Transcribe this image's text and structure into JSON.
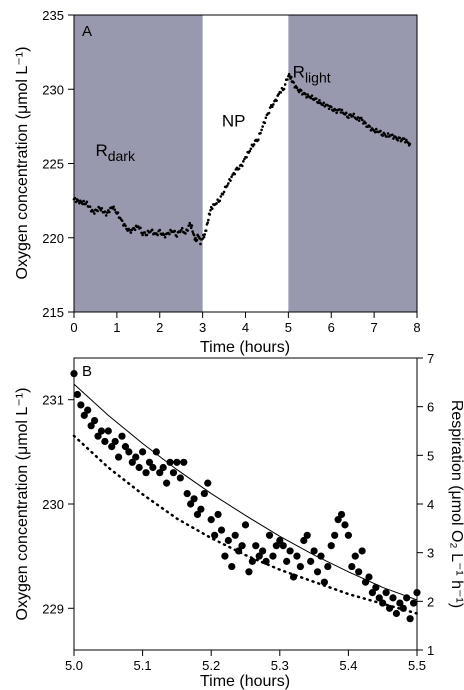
{
  "chart_data": [
    {
      "type": "scatter",
      "panel_label": "A",
      "xlabel": "Time (hours)",
      "ylabel": "Oxygen concentration (μmol L⁻¹)",
      "xlim": [
        0,
        8
      ],
      "ylim": [
        215,
        235
      ],
      "xticks": [
        "0",
        "1",
        "2",
        "3",
        "4",
        "5",
        "6",
        "7",
        "8"
      ],
      "yticks": [
        "215",
        "220",
        "225",
        "230",
        "235"
      ],
      "shaded_regions": [
        {
          "from": 0,
          "to": 3,
          "color": "#9898ae"
        },
        {
          "from": 5,
          "to": 8,
          "color": "#9898ae"
        }
      ],
      "annotations": [
        {
          "base": "R",
          "sub": "dark",
          "x": 0.5,
          "y": 225.5
        },
        {
          "base": "NP",
          "sub": "",
          "x": 3.45,
          "y": 227.5
        },
        {
          "base": "R",
          "sub": "light",
          "x": 5.1,
          "y": 230.8
        }
      ],
      "series": [
        {
          "marker_color": "#000000",
          "x": [
            0.0,
            0.15,
            0.3,
            0.45,
            0.6,
            0.75,
            0.9,
            1.0,
            1.1,
            1.2,
            1.3,
            1.4,
            1.5,
            1.6,
            1.7,
            1.8,
            1.9,
            2.0,
            2.1,
            2.2,
            2.3,
            2.4,
            2.5,
            2.6,
            2.7,
            2.75,
            2.8,
            2.85,
            2.9,
            2.95,
            3.0,
            3.05,
            3.1,
            3.15,
            3.2,
            3.3,
            3.4,
            3.5,
            3.6,
            3.7,
            3.8,
            3.9,
            4.0,
            4.1,
            4.2,
            4.3,
            4.4,
            4.5,
            4.6,
            4.7,
            4.8,
            4.9,
            5.0,
            5.05,
            5.1,
            5.2,
            5.3,
            5.4,
            5.5,
            5.6,
            5.7,
            5.8,
            5.9,
            6.0,
            6.1,
            6.2,
            6.3,
            6.4,
            6.5,
            6.6,
            6.7,
            6.8,
            6.9,
            7.0,
            7.1,
            7.2,
            7.3,
            7.4,
            7.5,
            7.6,
            7.7,
            7.8,
            7.85
          ],
          "y": [
            222.6,
            222.4,
            222.3,
            221.7,
            222.0,
            221.6,
            222.1,
            221.7,
            221.2,
            220.7,
            220.4,
            220.6,
            220.8,
            220.3,
            220.3,
            220.5,
            220.2,
            220.4,
            220.1,
            220.3,
            220.5,
            220.2,
            220.6,
            220.3,
            220.9,
            220.7,
            220.1,
            219.8,
            220.2,
            219.7,
            220.0,
            220.2,
            220.8,
            221.5,
            222.0,
            222.3,
            222.6,
            223.2,
            223.7,
            224.2,
            224.6,
            224.8,
            225.4,
            225.9,
            226.4,
            226.7,
            227.5,
            228.2,
            228.8,
            229.2,
            229.8,
            230.1,
            231.0,
            230.8,
            230.5,
            230.0,
            229.8,
            229.6,
            229.5,
            229.4,
            229.2,
            229.0,
            228.9,
            228.7,
            228.5,
            228.6,
            228.4,
            228.2,
            228.3,
            228.0,
            228.0,
            227.6,
            227.4,
            227.2,
            227.2,
            227.0,
            226.9,
            226.9,
            226.7,
            226.6,
            226.6,
            226.4,
            226.1
          ]
        }
      ]
    },
    {
      "type": "scatter",
      "panel_label": "B",
      "xlabel": "Time (hours)",
      "ylabel": "Oxygen concentration (μmol L⁻¹)",
      "ylabel_right": "Respiration (μmol O₂ L⁻¹ h⁻¹)",
      "xlim": [
        5.0,
        5.5
      ],
      "ylim": [
        228.6,
        231.4
      ],
      "ylim_right": [
        1.0,
        7.0
      ],
      "xticks": [
        "5.0",
        "5.1",
        "5.2",
        "5.3",
        "5.4",
        "5.5"
      ],
      "yticks": [
        "229",
        "230",
        "231"
      ],
      "yticks_right": [
        "1",
        "2",
        "3",
        "4",
        "5",
        "6",
        "7"
      ],
      "series": [
        {
          "style": "points",
          "x": [
            5.0,
            5.005,
            5.01,
            5.015,
            5.02,
            5.025,
            5.03,
            5.035,
            5.04,
            5.045,
            5.05,
            5.055,
            5.06,
            5.065,
            5.07,
            5.075,
            5.08,
            5.085,
            5.09,
            5.095,
            5.1,
            5.105,
            5.11,
            5.115,
            5.12,
            5.125,
            5.13,
            5.135,
            5.14,
            5.145,
            5.15,
            5.155,
            5.16,
            5.165,
            5.17,
            5.175,
            5.18,
            5.185,
            5.19,
            5.195,
            5.2,
            5.205,
            5.21,
            5.215,
            5.22,
            5.225,
            5.23,
            5.235,
            5.24,
            5.245,
            5.25,
            5.255,
            5.26,
            5.265,
            5.27,
            5.275,
            5.28,
            5.285,
            5.29,
            5.295,
            5.3,
            5.305,
            5.31,
            5.315,
            5.32,
            5.325,
            5.33,
            5.335,
            5.34,
            5.345,
            5.35,
            5.355,
            5.36,
            5.365,
            5.37,
            5.375,
            5.38,
            5.385,
            5.39,
            5.395,
            5.4,
            5.405,
            5.41,
            5.415,
            5.42,
            5.425,
            5.43,
            5.435,
            5.44,
            5.445,
            5.45,
            5.455,
            5.46,
            5.465,
            5.47,
            5.475,
            5.48,
            5.485,
            5.49,
            5.495,
            5.5
          ],
          "y": [
            231.25,
            231.05,
            230.95,
            230.85,
            230.9,
            230.75,
            230.8,
            230.65,
            230.7,
            230.6,
            230.7,
            230.55,
            230.6,
            230.45,
            230.65,
            230.55,
            230.5,
            230.4,
            230.45,
            230.35,
            230.5,
            230.3,
            230.4,
            230.35,
            230.5,
            230.3,
            230.35,
            230.2,
            230.4,
            230.3,
            230.4,
            230.25,
            230.4,
            230.1,
            230.0,
            230.05,
            229.9,
            229.95,
            230.1,
            230.2,
            229.85,
            229.7,
            229.9,
            229.75,
            229.5,
            229.65,
            229.4,
            229.7,
            229.55,
            229.6,
            229.8,
            229.35,
            229.45,
            229.6,
            229.5,
            229.55,
            229.45,
            229.7,
            229.5,
            229.6,
            229.65,
            229.6,
            229.45,
            229.55,
            229.3,
            229.5,
            229.4,
            229.65,
            229.7,
            229.45,
            229.55,
            229.35,
            229.5,
            229.25,
            229.4,
            229.6,
            229.7,
            229.85,
            229.9,
            229.8,
            229.7,
            229.4,
            229.5,
            229.35,
            229.55,
            229.25,
            229.3,
            229.15,
            229.2,
            229.1,
            229.05,
            229.15,
            229.0,
            229.1,
            228.95,
            229.05,
            229.0,
            229.1,
            228.9,
            229.05,
            229.15
          ]
        },
        {
          "style": "solid-fit",
          "axis": "left",
          "x": [
            5.0,
            5.05,
            5.1,
            5.15,
            5.2,
            5.25,
            5.3,
            5.35,
            5.4,
            5.45,
            5.5
          ],
          "y": [
            231.15,
            230.85,
            230.58,
            230.33,
            230.1,
            229.89,
            229.69,
            229.51,
            229.35,
            229.2,
            229.08
          ]
        },
        {
          "style": "dotted",
          "axis": "right",
          "x": [
            5.0,
            5.05,
            5.1,
            5.15,
            5.2,
            5.25,
            5.3,
            5.35,
            5.4,
            5.45,
            5.5
          ],
          "y": [
            5.4,
            4.75,
            4.2,
            3.7,
            3.3,
            2.95,
            2.65,
            2.4,
            2.15,
            1.95,
            1.75
          ]
        }
      ]
    }
  ]
}
